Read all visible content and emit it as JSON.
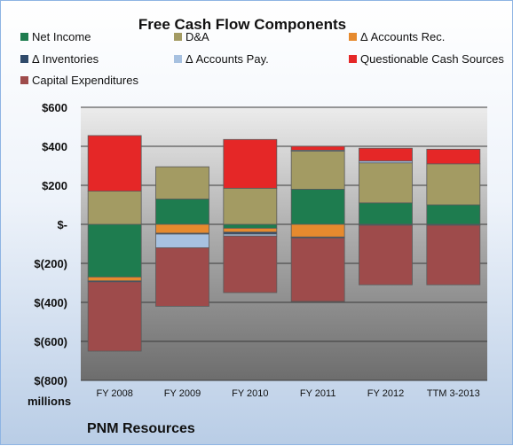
{
  "chart_data": {
    "type": "bar",
    "stacked": true,
    "title": "Free Cash Flow Components",
    "units_label": "millions",
    "company": "PNM Resources",
    "categories": [
      "FY 2008",
      "FY 2009",
      "FY 2010",
      "FY 2011",
      "FY 2012",
      "TTM 3-2013"
    ],
    "ylim": [
      -800,
      600
    ],
    "yticks": [
      600,
      400,
      200,
      0,
      -200,
      -400,
      -600,
      -800
    ],
    "ytick_labels": [
      "$600",
      "$400",
      "$200",
      "$-",
      "$(200)",
      "$(400)",
      "$(600)",
      "$(800)"
    ],
    "legend_position": "top",
    "grid": true,
    "series": [
      {
        "name": "Net Income",
        "color": "#1e7c4f",
        "values": [
          -270,
          130,
          -20,
          180,
          110,
          100
        ]
      },
      {
        "name": "D&A",
        "color": "#a39b63",
        "values": [
          170,
          165,
          185,
          195,
          205,
          210
        ]
      },
      {
        "name": "Δ Accounts Rec.",
        "color": "#e68a2e",
        "values": [
          -20,
          -45,
          -20,
          -65,
          0,
          0
        ]
      },
      {
        "name": "Δ Inventories",
        "color": "#2f4a6b",
        "values": [
          -5,
          -5,
          -10,
          -5,
          -5,
          -5
        ]
      },
      {
        "name": "Δ Accounts Pay.",
        "color": "#a7c1e0",
        "values": [
          0,
          -70,
          -10,
          5,
          10,
          0
        ]
      },
      {
        "name": "Questionable Cash Sources",
        "color": "#e52727",
        "values": [
          285,
          0,
          250,
          20,
          65,
          75
        ]
      },
      {
        "name": "Capital Expenditures",
        "color": "#9e4b4b",
        "values": [
          -355,
          -300,
          -290,
          -325,
          -305,
          -305
        ]
      }
    ]
  }
}
